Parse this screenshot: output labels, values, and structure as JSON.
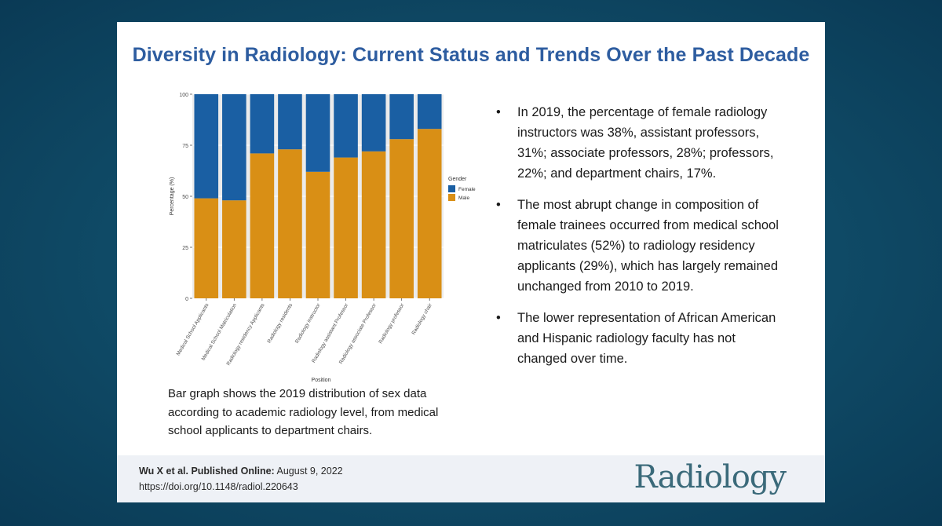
{
  "slide": {
    "title": "Diversity in Radiology: Current Status and Trends Over the Past Decade",
    "caption": "Bar graph shows the 2019 distribution of sex data according to academic radiology level, from medical school applicants to department chairs.",
    "bullets": [
      "In 2019, the percentage of female radiology instructors was 38%, assistant professors, 31%; associate professors, 28%; professors, 22%; and department chairs, 17%.",
      "The most abrupt change in composition of female trainees occurred from medical school matriculates (52%) to radiology residency applicants (29%), which has largely remained unchanged from 2010 to 2019.",
      "The lower representation of African American and Hispanic radiology faculty has not changed over time."
    ],
    "bullet_glyph": "•",
    "citation": {
      "authors": "Wu X et al. Published Online:",
      "date": " August 9, 2022",
      "doi": "https://doi.org/10.1148/radiol.220643"
    },
    "logo": "Radiology"
  },
  "chart_data": {
    "type": "bar",
    "stacked": true,
    "categories": [
      "Medical School Applicants",
      "Medical School Matriculation",
      "Radiology residency Applicants",
      "Radiology residents",
      "Radiology instructor",
      "Radiology assistant Professor",
      "Radiology associate Professor",
      "Radiology professor",
      "Radiology chair"
    ],
    "tick_labels": [
      "Medical School Applicants",
      "Medical School Matriculation",
      "Radiology residency Applicants",
      "Radiology residents",
      "Radiology instructor",
      "Radiology assistant Professor",
      "Radiology associate Professor",
      "Radiology professor",
      "Radiology chair"
    ],
    "series": [
      {
        "name": "Male",
        "color": "#d98f15",
        "values": [
          49,
          48,
          71,
          73,
          62,
          69,
          72,
          78,
          83
        ]
      },
      {
        "name": "Female",
        "color": "#1a5fa3",
        "values": [
          51,
          52,
          29,
          27,
          38,
          31,
          28,
          22,
          17
        ]
      }
    ],
    "xlabel": "Position",
    "ylabel": "Percentage (%)",
    "ylim": [
      0,
      100
    ],
    "yticks": [
      0,
      25,
      50,
      75,
      100
    ],
    "grid": true,
    "legend": {
      "title": "Gender",
      "position": "right",
      "order": [
        "Female",
        "Male"
      ]
    },
    "panel_color": "#ebebeb"
  }
}
